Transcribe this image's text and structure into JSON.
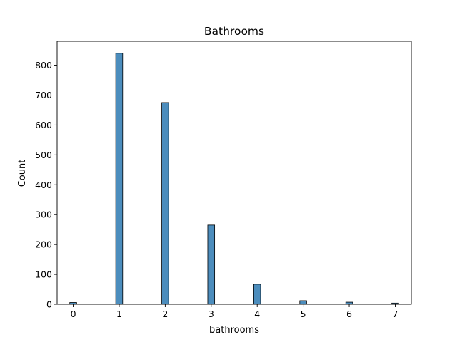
{
  "chart_data": {
    "type": "bar",
    "title": "Bathrooms",
    "xlabel": "bathrooms",
    "ylabel": "Count",
    "xlim": [
      -0.35,
      7.35
    ],
    "ylim": [
      0,
      880
    ],
    "xticks": [
      "0",
      "1",
      "2",
      "3",
      "4",
      "5",
      "6",
      "7"
    ],
    "yticks": [
      "0",
      "100",
      "200",
      "300",
      "400",
      "500",
      "600",
      "700",
      "800"
    ],
    "bin_width": 0.15,
    "bars": [
      {
        "x": 0,
        "value": 6
      },
      {
        "x": 1,
        "value": 840
      },
      {
        "x": 2,
        "value": 675
      },
      {
        "x": 3,
        "value": 265
      },
      {
        "x": 4,
        "value": 67
      },
      {
        "x": 5,
        "value": 12
      },
      {
        "x": 6,
        "value": 7
      },
      {
        "x": 7,
        "value": 4
      }
    ],
    "bar_color": "#4c8dbd",
    "bar_edge_color": "#000000",
    "grid": false,
    "legend": "none"
  }
}
